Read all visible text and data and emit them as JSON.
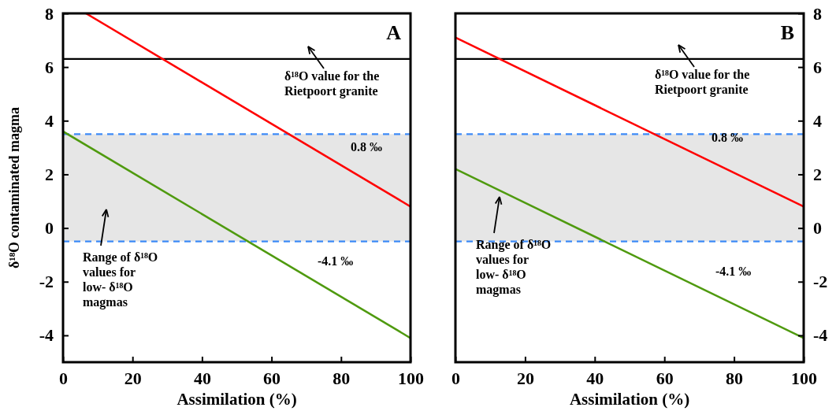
{
  "chart_data": [
    {
      "type": "line",
      "title": "A",
      "xlabel": "Assimilation (%)",
      "ylabel": "δ¹⁸O contaminated magma",
      "xlim": [
        0,
        100
      ],
      "xticks": [
        0,
        20,
        40,
        60,
        80,
        100
      ],
      "ylim": [
        -5,
        8
      ],
      "yticks": [
        -4,
        -2,
        0,
        2,
        4,
        6,
        8
      ],
      "series": [
        {
          "color": "#ff0000",
          "x": [
            6.6,
            100
          ],
          "values": [
            8,
            0.8
          ]
        },
        {
          "color": "#4f9a0f",
          "x": [
            0,
            100
          ],
          "values": [
            3.6,
            -4.1
          ]
        }
      ],
      "ref_lines": [
        {
          "axis": "y",
          "value": 6.3,
          "color": "#000000",
          "line_style": "solid"
        },
        {
          "axis": "y",
          "value": 3.5,
          "color": "#3d8af7",
          "line_style": "dashed"
        },
        {
          "axis": "y",
          "value": -0.5,
          "color": "#3d8af7",
          "line_style": "dashed"
        }
      ],
      "bands": [
        {
          "axis": "y",
          "from": -0.5,
          "to": 3.5,
          "color": "#e6e6e6"
        }
      ],
      "annotations": [
        "δ¹⁸O value for the\nRietpoort granite",
        "0.8 ‰",
        "Range of δ¹⁸O\nvalues for\nlow- δ¹⁸O\nmagmas",
        "-4.1 ‰"
      ]
    },
    {
      "type": "line",
      "title": "B",
      "xlabel": "Assimilation (%)",
      "xlim": [
        0,
        100
      ],
      "xticks": [
        0,
        20,
        40,
        60,
        80,
        100
      ],
      "ylim": [
        -5,
        8
      ],
      "yticks": [
        -4,
        -2,
        0,
        2,
        4,
        6,
        8
      ],
      "series": [
        {
          "color": "#ff0000",
          "x": [
            0,
            100
          ],
          "values": [
            7.1,
            0.8
          ]
        },
        {
          "color": "#4f9a0f",
          "x": [
            0,
            100
          ],
          "values": [
            2.2,
            -4.1
          ]
        }
      ],
      "ref_lines": [
        {
          "axis": "y",
          "value": 6.3,
          "color": "#000000",
          "line_style": "solid"
        },
        {
          "axis": "y",
          "value": 3.5,
          "color": "#3d8af7",
          "line_style": "dashed"
        },
        {
          "axis": "y",
          "value": -0.5,
          "color": "#3d8af7",
          "line_style": "dashed"
        }
      ],
      "bands": [
        {
          "axis": "y",
          "from": -0.5,
          "to": 3.5,
          "color": "#e6e6e6"
        }
      ],
      "annotations": [
        "δ¹⁸O value for the\nRietpoort granite",
        "0.8 ‰",
        "Range of δ¹⁸O\nvalues for\nlow- δ¹⁸O\nmagmas",
        "-4.1 ‰"
      ]
    }
  ]
}
